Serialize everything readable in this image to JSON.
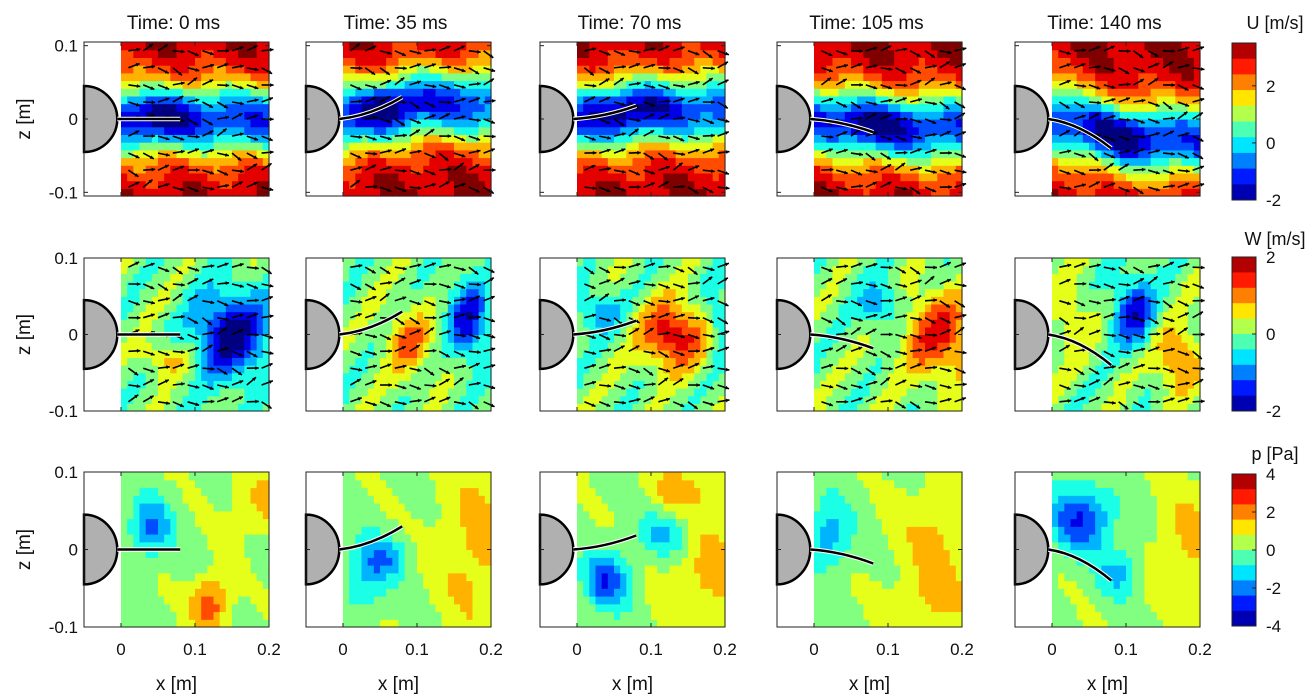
{
  "chart_data": {
    "type": "heatmap",
    "columns": [
      {
        "time_label": "Time: 0 ms",
        "plate_tip": [
          0.08,
          0.0
        ]
      },
      {
        "time_label": "Time: 35 ms",
        "plate_tip": [
          0.08,
          0.03
        ]
      },
      {
        "time_label": "Time: 70 ms",
        "plate_tip": [
          0.08,
          0.018
        ]
      },
      {
        "time_label": "Time: 105 ms",
        "plate_tip": [
          0.08,
          -0.018
        ]
      },
      {
        "time_label": "Time: 140 ms",
        "plate_tip": [
          0.08,
          -0.04
        ]
      }
    ],
    "rows": [
      {
        "field": "U",
        "colorbar_label": "U [m/s]",
        "clim": [
          -2,
          3.5
        ],
        "colorbar_ticks": [
          "2",
          "0",
          "-2"
        ],
        "colorbar_tick_values": [
          2,
          0,
          -2
        ],
        "ylabel": "z [m]",
        "ytick_labels": [
          "0.1",
          "0",
          "-0.1"
        ],
        "ytick_values": [
          0.1,
          0,
          -0.1
        ],
        "ylim": [
          -0.105,
          0.105
        ],
        "vectors": true
      },
      {
        "field": "W",
        "colorbar_label": "W [m/s]",
        "clim": [
          -2,
          2
        ],
        "colorbar_ticks": [
          "2",
          "0",
          "-2"
        ],
        "colorbar_tick_values": [
          2,
          0,
          -2
        ],
        "ylabel": "z [m]",
        "ytick_labels": [
          "0.1",
          "0",
          "-0.1"
        ],
        "ytick_values": [
          0.1,
          0,
          -0.1
        ],
        "ylim": [
          -0.1,
          0.1
        ],
        "vectors": true
      },
      {
        "field": "p",
        "colorbar_label": "p [Pa]",
        "clim": [
          -4,
          4
        ],
        "colorbar_ticks": [
          "4",
          "2",
          "0",
          "-2",
          "-4"
        ],
        "colorbar_tick_values": [
          4,
          2,
          0,
          -2,
          -4
        ],
        "ylabel": "z [m]",
        "ytick_labels": [
          "0.1",
          "0",
          "-0.1"
        ],
        "ytick_values": [
          0.1,
          0,
          -0.1
        ],
        "ylim": [
          -0.1,
          0.1
        ],
        "vectors": false
      }
    ],
    "xlabel": "x [m]",
    "xtick_labels": [
      "0",
      "0.1",
      "0.2"
    ],
    "xtick_values": [
      0,
      0.1,
      0.2
    ],
    "xlim": [
      -0.05,
      0.2
    ],
    "cylinder_radius": 0.045,
    "colormap": "jet",
    "colors": {
      "cylinder": "#b0b0b0",
      "plate": "#000000",
      "vectors": "#000000"
    }
  }
}
